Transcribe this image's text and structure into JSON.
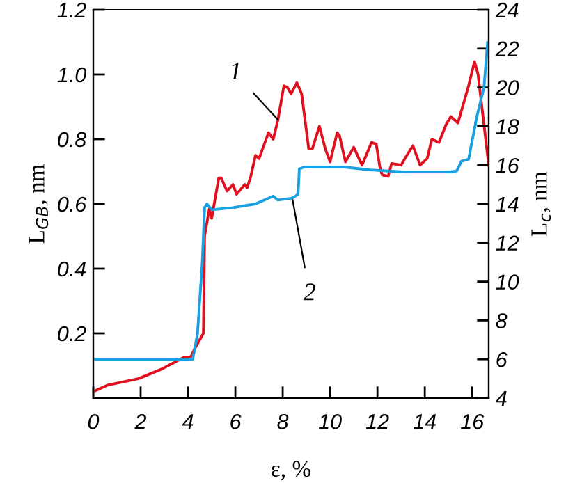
{
  "chart_data": {
    "type": "line",
    "xlabel": "ε, %",
    "ylabel": "L$_{GB}$, nm",
    "y2label": "L$_{c}$, nm",
    "xlim": [
      0,
      16.7
    ],
    "xticks": [
      0,
      2,
      4,
      6,
      8,
      10,
      12,
      14,
      16
    ],
    "ylim": [
      0,
      1.2
    ],
    "yticks": [
      0.2,
      0.4,
      0.6,
      0.8,
      {
        "value": 1,
        "label": "1.0"
      },
      1.2
    ],
    "y2lim": [
      4,
      24
    ],
    "y2ticks": [
      4,
      6,
      8,
      10,
      12,
      14,
      16,
      18,
      20,
      22,
      24
    ],
    "grid": false,
    "legend": false,
    "marker": "none",
    "line_style": "solid",
    "series": [
      {
        "color": "#e0101e",
        "x": [
          0,
          0.6,
          1.9,
          2.9,
          3.8,
          4.1,
          4.3,
          4.65,
          4.7,
          4.9,
          5.0,
          5.3,
          5.4,
          5.65,
          5.9,
          6.05,
          6.4,
          6.5,
          6.65,
          6.85,
          7.0,
          7.4,
          7.6,
          7.8,
          8.05,
          8.2,
          8.35,
          8.6,
          8.8,
          9.1,
          9.25,
          9.55,
          9.8,
          10.0,
          10.3,
          10.4,
          10.65,
          11.0,
          11.35,
          11.75,
          11.95,
          12.1,
          12.2,
          12.45,
          12.6,
          13.0,
          13.2,
          13.5,
          13.8,
          14.1,
          14.3,
          14.6,
          14.9,
          15.1,
          15.4,
          15.85,
          16.1,
          16.25,
          16.7
        ],
        "values": [
          0.02,
          0.04,
          0.06,
          0.09,
          0.125,
          0.125,
          0.155,
          0.2,
          0.5,
          0.585,
          0.556,
          0.68,
          0.68,
          0.64,
          0.66,
          0.63,
          0.66,
          0.65,
          0.685,
          0.75,
          0.74,
          0.82,
          0.8,
          0.86,
          0.965,
          0.96,
          0.94,
          0.975,
          0.94,
          0.77,
          0.77,
          0.84,
          0.77,
          0.73,
          0.82,
          0.81,
          0.73,
          0.775,
          0.72,
          0.79,
          0.785,
          0.715,
          0.69,
          0.685,
          0.725,
          0.72,
          0.745,
          0.78,
          0.72,
          0.74,
          0.8,
          0.79,
          0.845,
          0.87,
          0.85,
          0.965,
          1.04,
          1.0,
          0.72
        ]
      },
      {
        "color": "#1aa0e0",
        "axis": "y2",
        "x": [
          0,
          4.2,
          4.4,
          4.6,
          4.7,
          4.8,
          5.0,
          5.85,
          6.85,
          7.6,
          7.8,
          8.4,
          8.65,
          8.7,
          8.9,
          10.6,
          11.7,
          13.1,
          15.1,
          15.35,
          15.55,
          15.85,
          16.2,
          16.5,
          16.65
        ],
        "values": [
          6.0,
          6.0,
          7.3,
          10.9,
          13.8,
          14.0,
          13.7,
          13.8,
          14.0,
          14.4,
          14.2,
          14.3,
          14.5,
          15.8,
          15.9,
          15.9,
          15.75,
          15.65,
          15.65,
          15.7,
          16.2,
          16.3,
          18.5,
          20.0,
          22.3
        ]
      }
    ],
    "annotations": [
      {
        "text": "1",
        "x": 7.8,
        "y": 0.86
      },
      {
        "text": "2",
        "x": 8.4,
        "y": 0.62
      }
    ]
  }
}
